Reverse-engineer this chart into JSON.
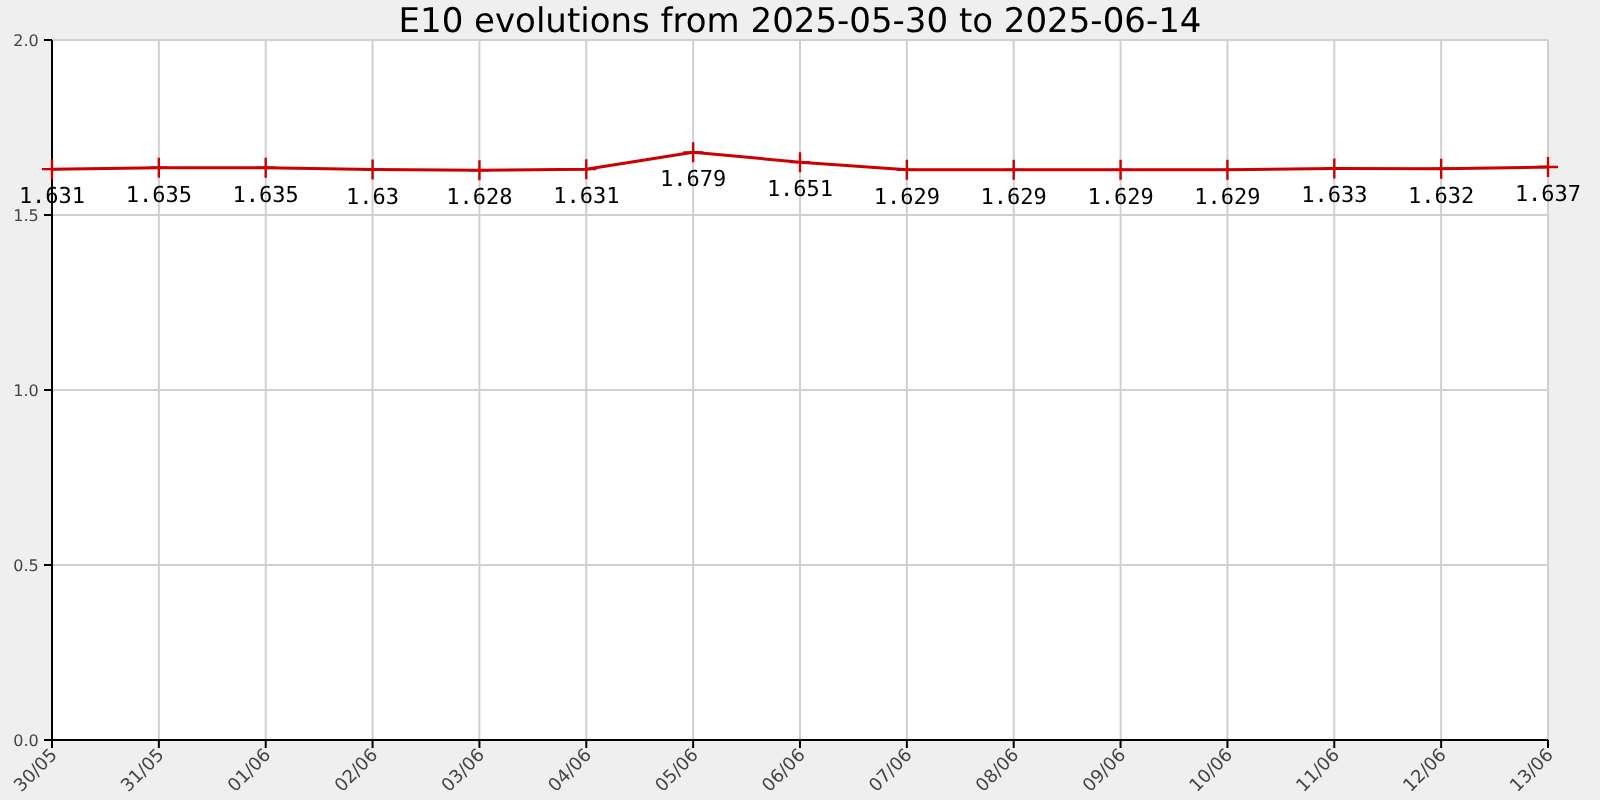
{
  "chart_data": {
    "type": "line",
    "title": "E10 evolutions from 2025-05-30 to 2025-06-14",
    "categories": [
      "30/05",
      "31/05",
      "01/06",
      "02/06",
      "03/06",
      "04/06",
      "05/06",
      "06/06",
      "07/06",
      "08/06",
      "09/06",
      "10/06",
      "11/06",
      "12/06",
      "13/06"
    ],
    "series": [
      {
        "color": "#cc0000",
        "values": [
          1.631,
          1.635,
          1.635,
          1.63,
          1.628,
          1.631,
          1.679,
          1.651,
          1.629,
          1.629,
          1.629,
          1.629,
          1.633,
          1.632,
          1.637
        ]
      }
    ],
    "ylim": [
      0,
      2
    ],
    "yticks": [
      {
        "value": 0,
        "label": "0.0"
      },
      {
        "value": 0.5,
        "label": "0.5"
      },
      {
        "value": 1,
        "label": "1.0"
      },
      {
        "value": 1.5,
        "label": "1.5"
      },
      {
        "value": 2,
        "label": "2.0"
      }
    ],
    "grid": true,
    "marker": "cross",
    "line_style": "solid",
    "data_labels": true
  }
}
